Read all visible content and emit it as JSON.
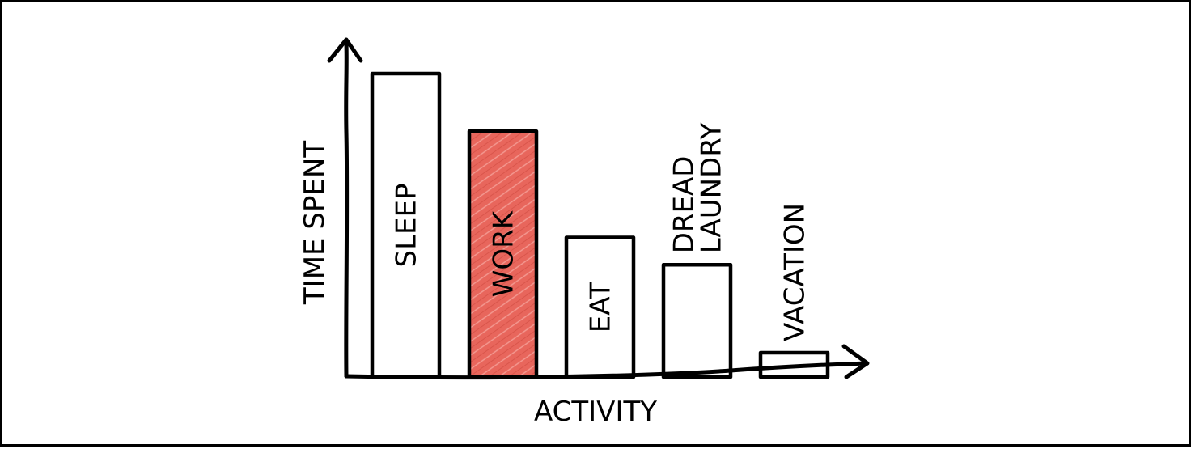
{
  "chart_data": {
    "type": "bar",
    "xlabel": "ACTIVITY",
    "ylabel": "TIME SPENT",
    "categories": [
      [
        "SLEEP"
      ],
      [
        "WORK"
      ],
      [
        "EAT"
      ],
      [
        "DREAD",
        "LAUNDRY"
      ],
      [
        "VACATION"
      ]
    ],
    "values": [
      100,
      81,
      46,
      37,
      8
    ],
    "ylim": [
      0,
      100
    ],
    "label_placement": [
      "inside",
      "inside",
      "inside",
      "above",
      "above"
    ],
    "highlight": "WORK",
    "colors": {
      "bar_fill": "#ffffff",
      "highlight_fill": "#e8665c",
      "stroke": "#000000",
      "background": "#ffffff"
    }
  }
}
